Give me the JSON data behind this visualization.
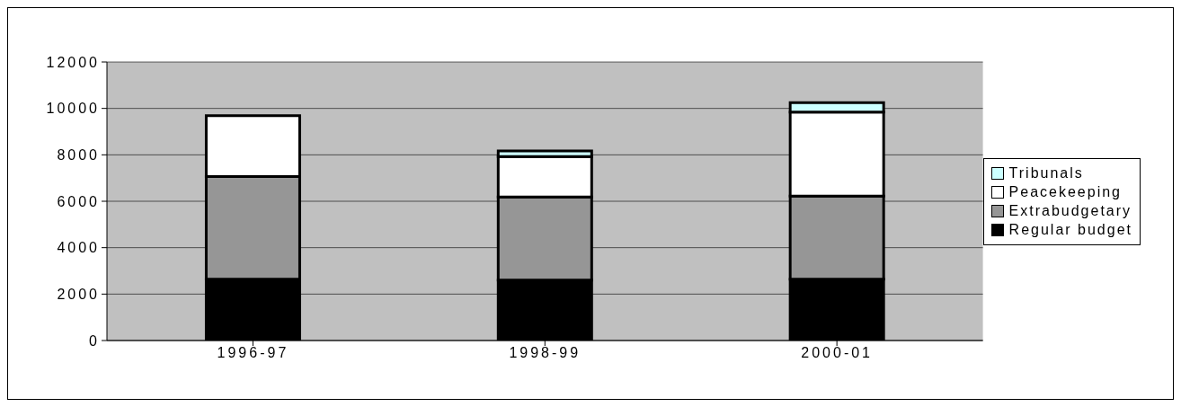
{
  "chart_data": {
    "type": "bar",
    "stacked": true,
    "categories": [
      "1996-97",
      "1998-99",
      "2000-01"
    ],
    "series": [
      {
        "name": "Regular budget",
        "color": "#000000",
        "values": [
          2640,
          2600,
          2640
        ]
      },
      {
        "name": "Extrabudgetary",
        "color": "#969696",
        "values": [
          4420,
          3580,
          3580
        ]
      },
      {
        "name": "Peacekeeping",
        "color": "#ffffff",
        "values": [
          2630,
          1750,
          3620
        ]
      },
      {
        "name": "Tribunals",
        "color": "#ccffff",
        "values": [
          0,
          240,
          410
        ]
      }
    ],
    "ylim": [
      0,
      12000
    ],
    "yticks": [
      0,
      2000,
      4000,
      6000,
      8000,
      10000,
      12000
    ],
    "grid": "y",
    "legend": "right"
  }
}
